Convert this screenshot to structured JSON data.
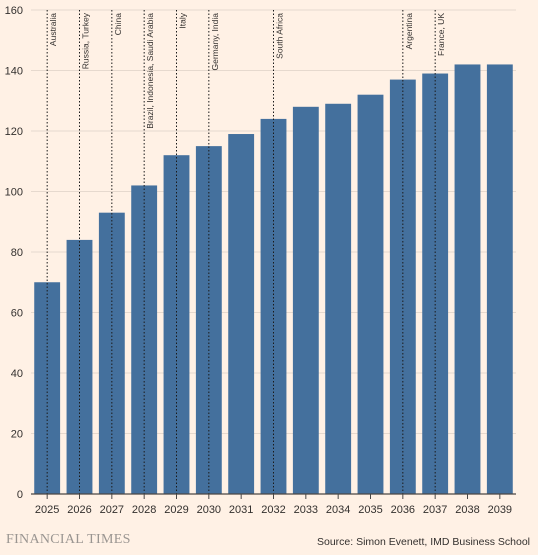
{
  "chart_data": {
    "type": "bar",
    "categories": [
      "2025",
      "2026",
      "2027",
      "2028",
      "2029",
      "2030",
      "2031",
      "2032",
      "2033",
      "2034",
      "2035",
      "2036",
      "2037",
      "2038",
      "2039"
    ],
    "values": [
      70,
      84,
      93,
      102,
      112,
      115,
      119,
      124,
      128,
      129,
      132,
      137,
      139,
      142,
      142
    ],
    "ylim": [
      0,
      160
    ],
    "yticks": [
      0,
      20,
      40,
      60,
      80,
      100,
      120,
      140,
      160
    ],
    "grid": "horizontal",
    "bar_color": "#44709d",
    "annotations": [
      {
        "category": "2025",
        "label": "Australia"
      },
      {
        "category": "2026",
        "label": "Russia, Turkey"
      },
      {
        "category": "2027",
        "label": "China"
      },
      {
        "category": "2028",
        "label": "Brazil, Indonesia, Saudi Arabia"
      },
      {
        "category": "2029",
        "label": "Italy"
      },
      {
        "category": "2030",
        "label": "Germany, India"
      },
      {
        "category": "2032",
        "label": "South Africa"
      },
      {
        "category": "2036",
        "label": "Argentina"
      },
      {
        "category": "2037",
        "label": "France, UK"
      }
    ]
  },
  "footer": {
    "brand": "FINANCIAL TIMES",
    "source": "Source: Simon Evenett, IMD Business School"
  },
  "colors": {
    "background": "#fff1e5",
    "gridline": "#e6d9ce",
    "text": "#33302e"
  }
}
